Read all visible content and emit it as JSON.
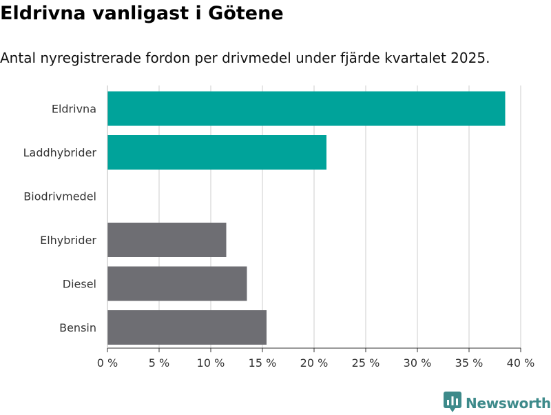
{
  "header": {
    "title": "Eldrivna vanligast i Götene",
    "subtitle": "Antal nyregistrerade fordon per drivmedel under fjärde kvartalet 2025."
  },
  "brand": {
    "name": "Newsworthy",
    "icon": "newsworthy-logo-icon",
    "color": "#3d8a8a"
  },
  "colors": {
    "highlight": "#00a39a",
    "neutral": "#6e6e73",
    "grid": "#dddddd",
    "axis": "#333333"
  },
  "chart_data": {
    "type": "bar",
    "orientation": "horizontal",
    "title": "Eldrivna vanligast i Götene",
    "subtitle": "Antal nyregistrerade fordon per drivmedel under fjärde kvartalet 2025.",
    "xlabel": "",
    "ylabel": "",
    "xlim": [
      0,
      40
    ],
    "grid": true,
    "categories": [
      "Eldrivna",
      "Laddhybrider",
      "Biodrivmedel",
      "Elhybrider",
      "Diesel",
      "Bensin"
    ],
    "values": [
      38.5,
      21.2,
      0,
      11.5,
      13.5,
      15.4
    ],
    "bar_colors": [
      "#00a39a",
      "#00a39a",
      "#00a39a",
      "#6e6e73",
      "#6e6e73",
      "#6e6e73"
    ],
    "ticks": [
      0,
      5,
      10,
      15,
      20,
      25,
      30,
      35,
      40
    ],
    "tick_labels": [
      "0 %",
      "5 %",
      "10 %",
      "15 %",
      "20 %",
      "25 %",
      "30 %",
      "35 %",
      "40 %"
    ]
  }
}
